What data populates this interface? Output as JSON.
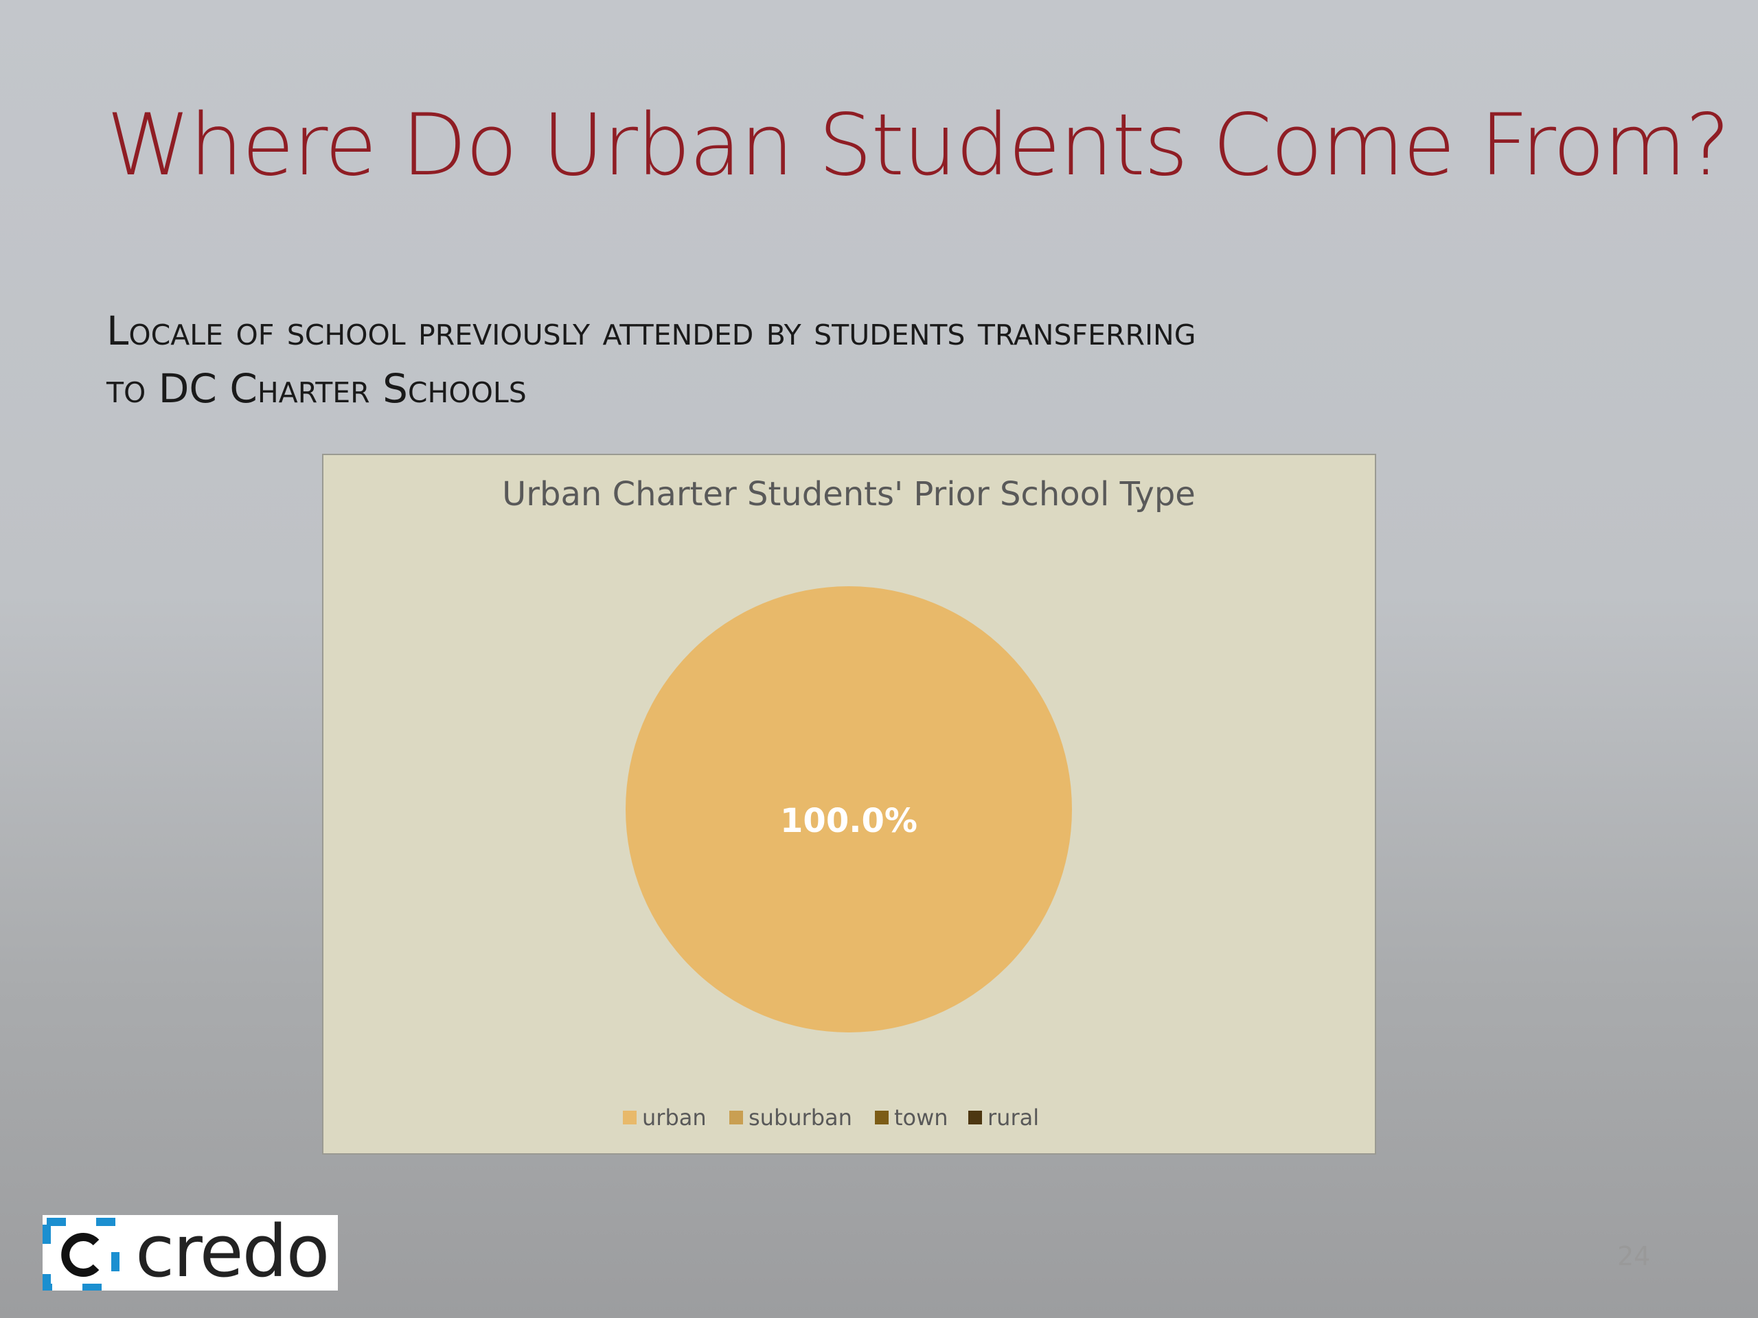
{
  "slide": {
    "title": "Where Do Urban Students Come From?",
    "subtitle": "Locale of school previously attended by students transferring to DC Charter Schools",
    "logo": "credo",
    "page_number": "24"
  },
  "chart_data": {
    "type": "pie",
    "title": "Urban Charter Students' Prior School Type",
    "categories": [
      "urban",
      "suburban",
      "town",
      "rural"
    ],
    "values": [
      100,
      0,
      0,
      0
    ],
    "value_labels": [
      "100.0%",
      null,
      null,
      null
    ],
    "colors": [
      "#e8b96a",
      "#c99f52",
      "#7c5c16",
      "#4d3711"
    ]
  }
}
